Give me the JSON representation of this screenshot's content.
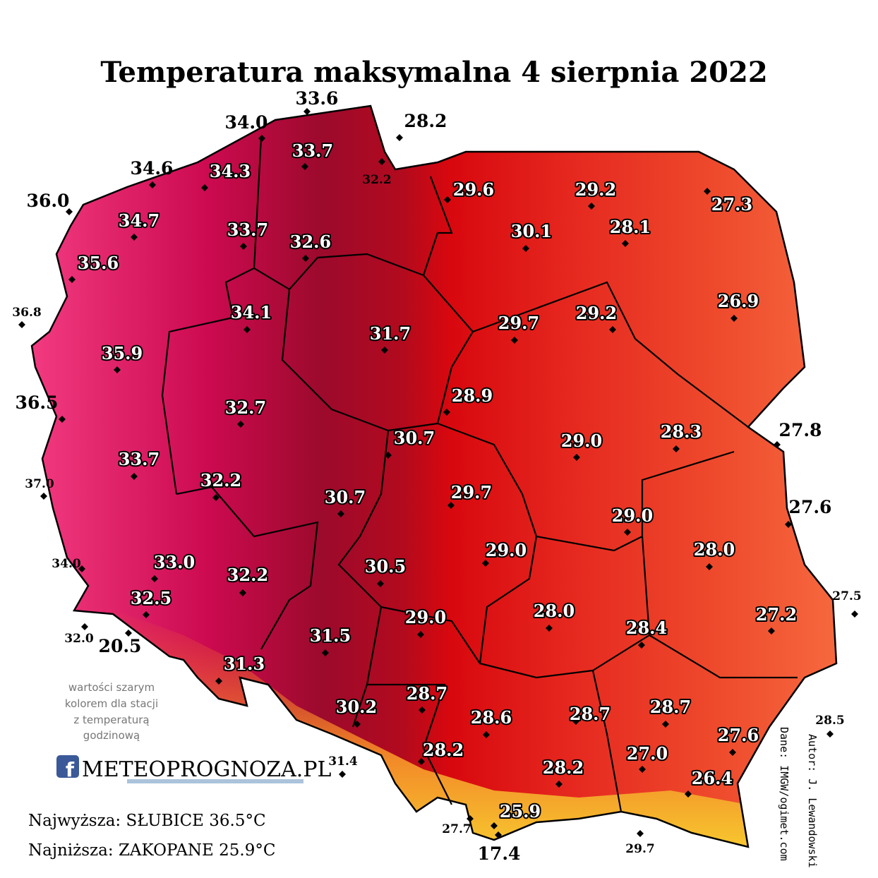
{
  "title": "Temperatura maksymalna 4 sierpnia 2022",
  "stations": [
    "33.6",
    "28.2",
    "34.0",
    "33.7",
    "32.2",
    "34.6",
    "34.3",
    "36.0",
    "29.6",
    "29.2",
    "27.3",
    "34.7",
    "33.7",
    "30.1",
    "28.1",
    "32.6",
    "35.6",
    "36.8",
    "34.1",
    "26.9",
    "29.2",
    "29.7",
    "31.7",
    "35.9",
    "28.9",
    "36.5",
    "32.7",
    "27.8",
    "30.7",
    "29.0",
    "28.3",
    "37.0",
    "33.7",
    "32.2",
    "29.7",
    "30.7",
    "27.6",
    "29.0",
    "29.0",
    "28.0",
    "34.0",
    "33.0",
    "32.2",
    "30.5",
    "27.5",
    "32.5",
    "28.0",
    "29.0",
    "27.2",
    "32.0",
    "20.5",
    "28.4",
    "31.5",
    "31.3",
    "28.7",
    "30.2",
    "28.7",
    "28.6",
    "28.7",
    "28.5",
    "27.6",
    "28.2",
    "27.0",
    "31.4",
    "28.2",
    "26.4",
    "25.9",
    "27.7",
    "17.4",
    "29.7"
  ],
  "note": [
    "wartości szarym",
    "kolorem dla stacji",
    "z temperaturą",
    "godzinową"
  ],
  "logo": "METEOPROGNOZA.PL",
  "records": [
    "Najwyższa: SŁUBICE 36.5°C",
    "Najniższa: ZAKOPANE 25.9°C"
  ],
  "credits": [
    "Dane: IMGW/ogimet.com",
    "Autor: J. Lewandowski"
  ]
}
